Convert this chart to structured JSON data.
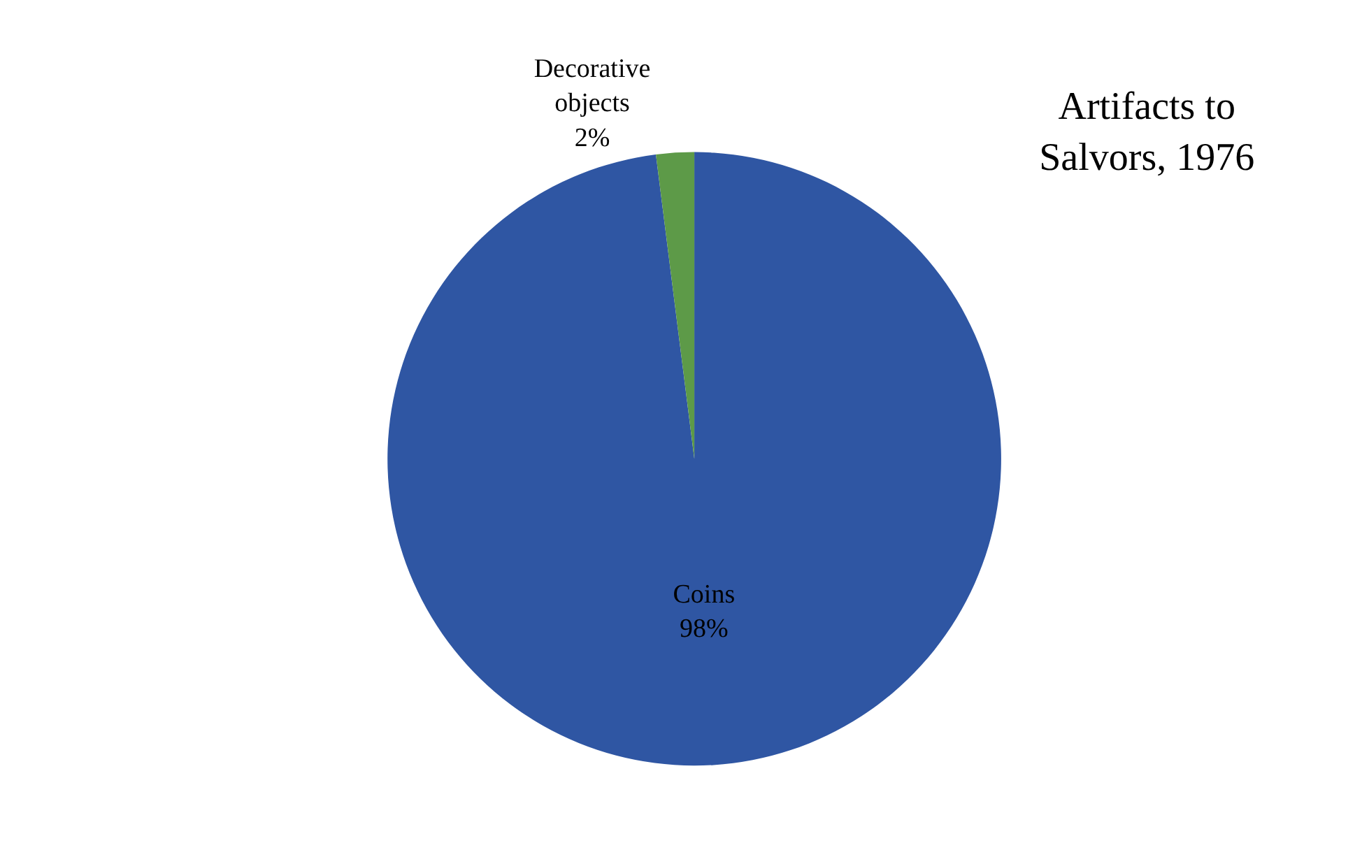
{
  "chart_data": {
    "type": "pie",
    "title": "Artifacts to Salvors, 1976",
    "categories": [
      "Coins",
      "Decorative objects"
    ],
    "values": [
      98,
      2
    ],
    "colors": [
      "#2f56a3",
      "#5d9a48"
    ],
    "value_labels": [
      "98%",
      "2%"
    ],
    "legend": false
  }
}
